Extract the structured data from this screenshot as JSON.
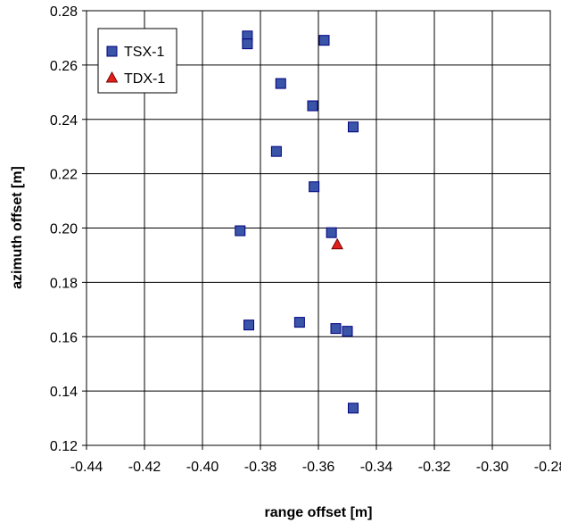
{
  "chart_data": {
    "type": "scatter",
    "xlabel": "range offset [m]",
    "ylabel": "azimuth offset [m]",
    "xlim": [
      -0.44,
      -0.28
    ],
    "ylim": [
      0.12,
      0.28
    ],
    "xticks": [
      -0.44,
      -0.42,
      -0.4,
      -0.38,
      -0.36,
      -0.34,
      -0.32,
      -0.3,
      -0.28
    ],
    "xtick_labels": [
      "-0.44",
      "-0.42",
      "-0.40",
      "-0.38",
      "-0.36",
      "-0.34",
      "-0.32",
      "-0.30",
      "-0.28"
    ],
    "yticks": [
      0.12,
      0.14,
      0.16,
      0.18,
      0.2,
      0.22,
      0.24,
      0.26,
      0.28
    ],
    "ytick_labels": [
      "0.12",
      "0.14",
      "0.16",
      "0.18",
      "0.20",
      "0.22",
      "0.24",
      "0.26",
      "0.28"
    ],
    "grid": true,
    "legend_position": "top-left",
    "series": [
      {
        "name": "TSX-1",
        "marker": "square",
        "color": "#3a54a8",
        "edge_color": "#000080",
        "points": [
          {
            "x": -0.3845,
            "y": 0.2707
          },
          {
            "x": -0.3845,
            "y": 0.2678
          },
          {
            "x": -0.358,
            "y": 0.2691
          },
          {
            "x": -0.373,
            "y": 0.2532
          },
          {
            "x": -0.362,
            "y": 0.245
          },
          {
            "x": -0.348,
            "y": 0.2372
          },
          {
            "x": -0.3745,
            "y": 0.2282
          },
          {
            "x": -0.3615,
            "y": 0.2152
          },
          {
            "x": -0.387,
            "y": 0.199
          },
          {
            "x": -0.3555,
            "y": 0.1983
          },
          {
            "x": -0.384,
            "y": 0.1643
          },
          {
            "x": -0.3665,
            "y": 0.1653
          },
          {
            "x": -0.354,
            "y": 0.163
          },
          {
            "x": -0.35,
            "y": 0.162
          },
          {
            "x": -0.348,
            "y": 0.1337
          }
        ]
      },
      {
        "name": "TDX-1",
        "marker": "triangle",
        "color": "#e0201b",
        "edge_color": "#7a0000",
        "points": [
          {
            "x": -0.3535,
            "y": 0.194
          }
        ]
      }
    ]
  }
}
